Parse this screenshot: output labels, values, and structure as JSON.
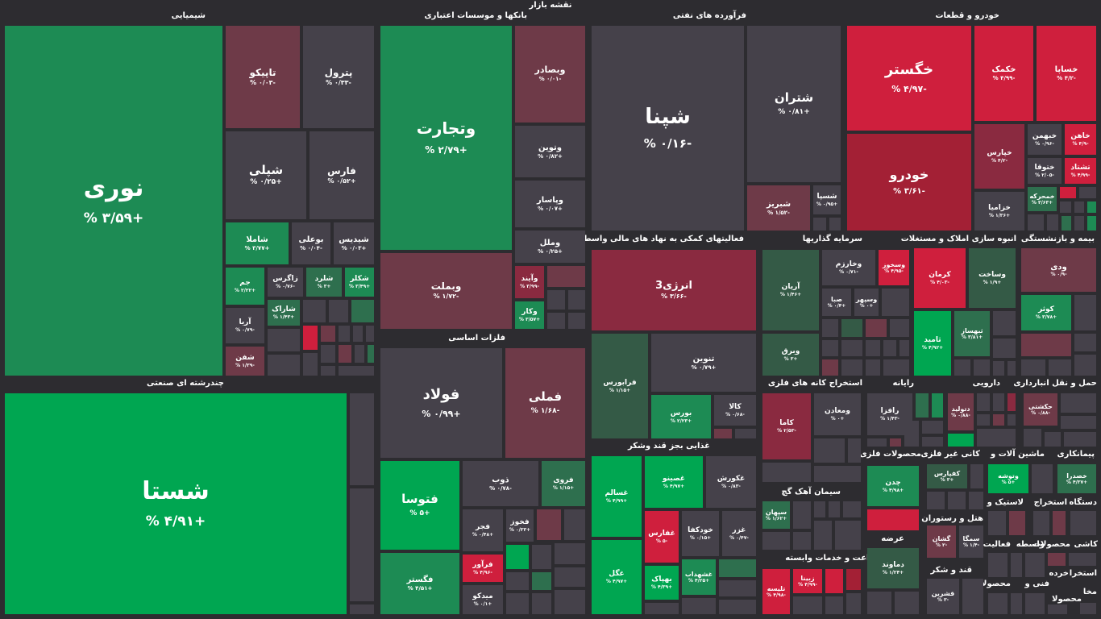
{
  "page_title": "نقشه بازار",
  "sectors": {
    "chemical": "شیمیایی",
    "banks": "بانکها و موسسات اعتباری",
    "oil": "فرآورده های نفتی",
    "auto": "خودرو و قطعات",
    "diversified": "چندرشته ای صنعتی",
    "financial": "فعالیتهای کمکی به نهاد های مالی واسط",
    "investment": "سرمایه گذاریها",
    "realestate": "انبوه سازی املاک و مستغلات",
    "insurance": "بیمه و بازنشستگی",
    "metals": "فلزات اساسی",
    "food": "غذایی بجز قند وشکر",
    "mining_coal": "استخراج کانه های فلزی",
    "computer": "رایانه",
    "pharma": "دارویی",
    "transport": "حمل و نقل انبارداری",
    "cement": "سیمان آهک گچ",
    "metal_products": "محصولات فلزی",
    "nonmetal": "کانی غیر فلزی",
    "machinery": "ماشین آلات و",
    "contracting": "پیمانکاری",
    "agri": "زراعت و خدمات وابسته",
    "supply": "عرضه",
    "hotel": "هتل و رستوران",
    "tire": "لاستیک و",
    "extraction": "استخراج",
    "devices": "دستگاه",
    "sugar": "قند و شکر",
    "activity": "فعالیت",
    "intermed": "واسطه",
    "products": "محصولات",
    "ceramics": "کاشی",
    "extraction2": "استخرا",
    "retail": "خرده",
    "tech": "فنی و",
    "products2": "محصولا",
    "products3": "محصولا",
    "misc": "مخا"
  },
  "tiles": {
    "nouri": {
      "symbol": "نوری",
      "change": "+۳/۵۹ %"
    },
    "tapiko": {
      "symbol": "تاپیکو",
      "change": "-۰/۰۳ %"
    },
    "petrol": {
      "symbol": "پترول",
      "change": "-۰/۳۳ %"
    },
    "shepli": {
      "symbol": "شپلی",
      "change": "+۰/۲۵ %"
    },
    "fars": {
      "symbol": "فارس",
      "change": "+۰/۵۲ %"
    },
    "shamla": {
      "symbol": "شاملا",
      "change": "+۳/۷۷ %"
    },
    "buali": {
      "symbol": "بوعلی",
      "change": "-۰/۰۴ %"
    },
    "shedis": {
      "symbol": "شیدیس",
      "change": "+۰/۰۳ %"
    },
    "jam": {
      "symbol": "جم",
      "change": "+۲/۲۲ %"
    },
    "zagros": {
      "symbol": "زاگرس",
      "change": "-۰/۷۶ %"
    },
    "sherd": {
      "symbol": "شلرد",
      "change": "+۳ %"
    },
    "shekar": {
      "symbol": "شکلر",
      "change": "+۳/۴۹ %"
    },
    "aria": {
      "symbol": "آریا",
      "change": "-۰/۷۹ %"
    },
    "sharak": {
      "symbol": "شاراک",
      "change": "+۱/۴۳ %"
    },
    "shefan": {
      "symbol": "شفن",
      "change": "-۱/۳۹ %"
    },
    "shasta": {
      "symbol": "شستا",
      "change": "+۴/۹۱ %"
    },
    "vatejarat": {
      "symbol": "وتجارت",
      "change": "+۲/۷۹ %"
    },
    "vbsader": {
      "symbol": "وبصادر",
      "change": "-۰/۰۱ %"
    },
    "vtoein": {
      "symbol": "وتوین",
      "change": "+۰/۸۲ %"
    },
    "vpasar": {
      "symbol": "وپاسار",
      "change": "+۰/۰۷ %"
    },
    "vmelal": {
      "symbol": "وملل",
      "change": "+۰/۲۵ %"
    },
    "vbmellat": {
      "symbol": "وبملت",
      "change": "-۱/۷۲ %"
    },
    "vayand": {
      "symbol": "وآیند",
      "change": "-۳/۹۹ %"
    },
    "vkar": {
      "symbol": "وکار",
      "change": "+۳/۵۷ %"
    },
    "shepna": {
      "symbol": "شپنا",
      "change": "-۰/۱۶ %"
    },
    "shatran": {
      "symbol": "شتران",
      "change": "+۰/۸۱ %"
    },
    "shbariz": {
      "symbol": "شبریز",
      "change": "-۱/۵۲ %"
    },
    "shespa": {
      "symbol": "شسپا",
      "change": "+۰/۹۵ %"
    },
    "khegostar": {
      "symbol": "خگستر",
      "change": "-۴/۹۷ %"
    },
    "khekomak": {
      "symbol": "خکمک",
      "change": "-۴/۹۹ %"
    },
    "khsapa": {
      "symbol": "خساپا",
      "change": "-۴/۲ %"
    },
    "khodro": {
      "symbol": "خودرو",
      "change": "-۳/۶۱ %"
    },
    "khepars": {
      "symbol": "خپارس",
      "change": "-۴/۲ %"
    },
    "khbahman": {
      "symbol": "خبهمن",
      "change": "-۰/۹۶ %"
    },
    "khaho": {
      "symbol": "خاهن",
      "change": "-۴/۹ %"
    },
    "khtoga": {
      "symbol": "ختوقا",
      "change": "-۲/۰۵ %"
    },
    "teshtad": {
      "symbol": "تشتاد",
      "change": "-۴/۹۹ %"
    },
    "khzamia": {
      "symbol": "خزامیا",
      "change": "+۱/۳۶ %"
    },
    "khamhre": {
      "symbol": "خمحرکه",
      "change": "+۳/۶۳ %"
    },
    "energy3": {
      "symbol": "انرژی3",
      "change": "-۳/۶۶ %"
    },
    "tenvin": {
      "symbol": "تنوین",
      "change": "+۰/۷۹ %"
    },
    "farabors": {
      "symbol": "فرابورس",
      "change": "+۱/۱۵ %"
    },
    "bors": {
      "symbol": "بورس",
      "change": "+۲/۲۳ %"
    },
    "kala": {
      "symbol": "کالا",
      "change": "-۰/۶۸ %"
    },
    "fooolad": {
      "symbol": "فولاد",
      "change": "+۰/۹۹ %"
    },
    "fameli": {
      "symbol": "فملی",
      "change": "-۱/۶۸ %"
    },
    "fotusa": {
      "symbol": "فتوسا",
      "change": "+۵ %"
    },
    "zob": {
      "symbol": "ذوب",
      "change": "-۰/۷۸ %"
    },
    "foroi": {
      "symbol": "فروی",
      "change": "+۱/۱۵ %"
    },
    "fajr": {
      "symbol": "فجر",
      "change": "+۰/۴۸ %"
    },
    "fakhoz": {
      "symbol": "فخوز",
      "change": "+۰/۳۳ %"
    },
    "fgostar": {
      "symbol": "فگستر",
      "change": "+۴/۵۱ %"
    },
    "faravar": {
      "symbol": "فرآور",
      "change": "-۴/۹۶ %"
    },
    "midko": {
      "symbol": "میدکو",
      "change": "+۰/۱ %"
    },
    "ghsalem": {
      "symbol": "غسالم",
      "change": "+۴/۹۹ %"
    },
    "ghasino": {
      "symbol": "غصینو",
      "change": "+۴/۹۷ %"
    },
    "ghkorosh": {
      "symbol": "غکورش",
      "change": "-۰/۸۳ %"
    },
    "ghfars": {
      "symbol": "غفارس",
      "change": "-۵ %"
    },
    "khodka": {
      "symbol": "خودکفا",
      "change": "+۰/۱۵ %"
    },
    "ghaz": {
      "symbol": "غزر",
      "change": "-۰/۴۷ %"
    },
    "ghgol": {
      "symbol": "غگل",
      "change": "+۴/۹۷ %"
    },
    "bahpak": {
      "symbol": "بهپاک",
      "change": "+۴/۳۹ %"
    },
    "ghshahdab": {
      "symbol": "غشهداب",
      "change": "+۴/۲۵ %"
    },
    "arian": {
      "symbol": "آریان",
      "change": "+۱/۴۶ %"
    },
    "vkharazm": {
      "symbol": "وخارزم",
      "change": "-۰/۷۱ %"
    },
    "vsakhuz": {
      "symbol": "وسخوز",
      "change": "-۴/۹۵ %"
    },
    "saba": {
      "symbol": "صبا",
      "change": "+۰/۴ %"
    },
    "vsepahr": {
      "symbol": "وسپهر",
      "change": "+۰ %"
    },
    "vbargh": {
      "symbol": "وبرق",
      "change": "+۳ %"
    },
    "karman": {
      "symbol": "کرمان",
      "change": "-۴/۰۳ %"
    },
    "vsakht": {
      "symbol": "وساخت",
      "change": "+۱/۹ %"
    },
    "vthimas": {
      "symbol": "ثبهساز",
      "change": "+۳/۸۱ %"
    },
    "tamid": {
      "symbol": "ثامید",
      "change": "+۴/۹۲ %"
    },
    "vodi": {
      "symbol": "ودی",
      "change": "-۰/۹ %"
    },
    "kowsar": {
      "symbol": "کوثر",
      "change": "+۳/۷۸ %"
    },
    "kama": {
      "symbol": "کاما",
      "change": "-۲/۵۳ %"
    },
    "maaden": {
      "symbol": "ومعادن",
      "change": "+۰ %"
    },
    "rafza": {
      "symbol": "رافزا",
      "change": "-۱/۴۳ %"
    },
    "dtolid": {
      "symbol": "دتولید",
      "change": "-۰/۸۸ %"
    },
    "hekeshti": {
      "symbol": "حکشتی",
      "change": "-۰/۸۸ %"
    },
    "sepahan": {
      "symbol": "سپهان",
      "change": "+۱/۶۲ %"
    },
    "chadn": {
      "symbol": "چدن",
      "change": "+۴/۹۸ %"
    },
    "kefaras": {
      "symbol": "کفپارس",
      "change": "+۳ %"
    },
    "vtavshe": {
      "symbol": "وتوشه",
      "change": "+۵ %"
    },
    "khsadra": {
      "symbol": "خصدرا",
      "change": "+۴/۳۷ %"
    },
    "geshan": {
      "symbol": "گشان",
      "change": "-۲ %"
    },
    "semga": {
      "symbol": "سمگا",
      "change": "-۱/۴ %"
    },
    "tipse": {
      "symbol": "تلیسه",
      "change": "-۴/۹۸ %"
    },
    "zabina": {
      "symbol": "زبینا",
      "change": "-۴/۹۹ %"
    },
    "damavand": {
      "symbol": "دماوند",
      "change": "+۱/۲۴ %"
    },
    "ghshirin": {
      "symbol": "قشرین",
      "change": "-۳ %"
    }
  }
}
